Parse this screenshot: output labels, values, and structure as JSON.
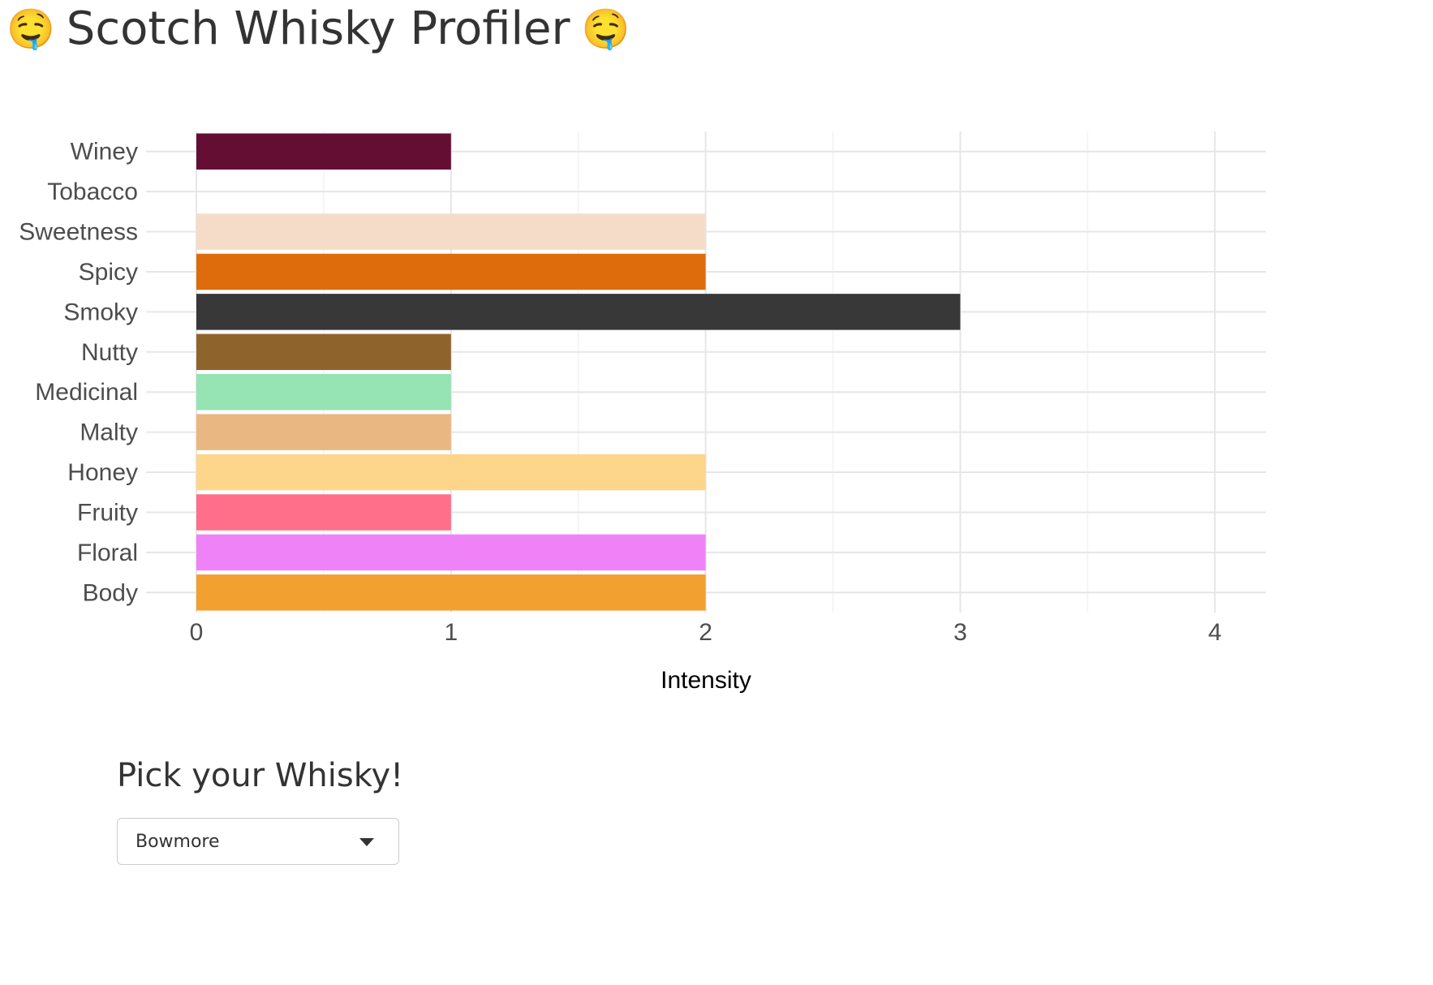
{
  "page": {
    "title": "Scotch Whisky Profiler",
    "title_icon": "drooling-face-icon",
    "title_emoji": "🤤"
  },
  "control": {
    "label": "Pick your Whisky!",
    "selected": "Bowmore"
  },
  "chart_data": {
    "type": "bar",
    "orientation": "horizontal",
    "xlabel": "Intensity",
    "ylabel": "",
    "xlim": [
      0,
      4.2
    ],
    "x_ticks": [
      0,
      1,
      2,
      3,
      4
    ],
    "grid": true,
    "legend": "none",
    "categories": [
      "Body",
      "Floral",
      "Fruity",
      "Honey",
      "Malty",
      "Medicinal",
      "Nutty",
      "Smoky",
      "Spicy",
      "Sweetness",
      "Tobacco",
      "Winey"
    ],
    "values": [
      2,
      2,
      1,
      2,
      1,
      1,
      1,
      3,
      2,
      2,
      0,
      1
    ],
    "colors": [
      "#f2a02f",
      "#f082f8",
      "#ff6f8a",
      "#fdd58b",
      "#e8b782",
      "#96e3b3",
      "#8f642c",
      "#383838",
      "#de6c0c",
      "#f4dcc8",
      "#cccccc",
      "#640e33"
    ]
  }
}
